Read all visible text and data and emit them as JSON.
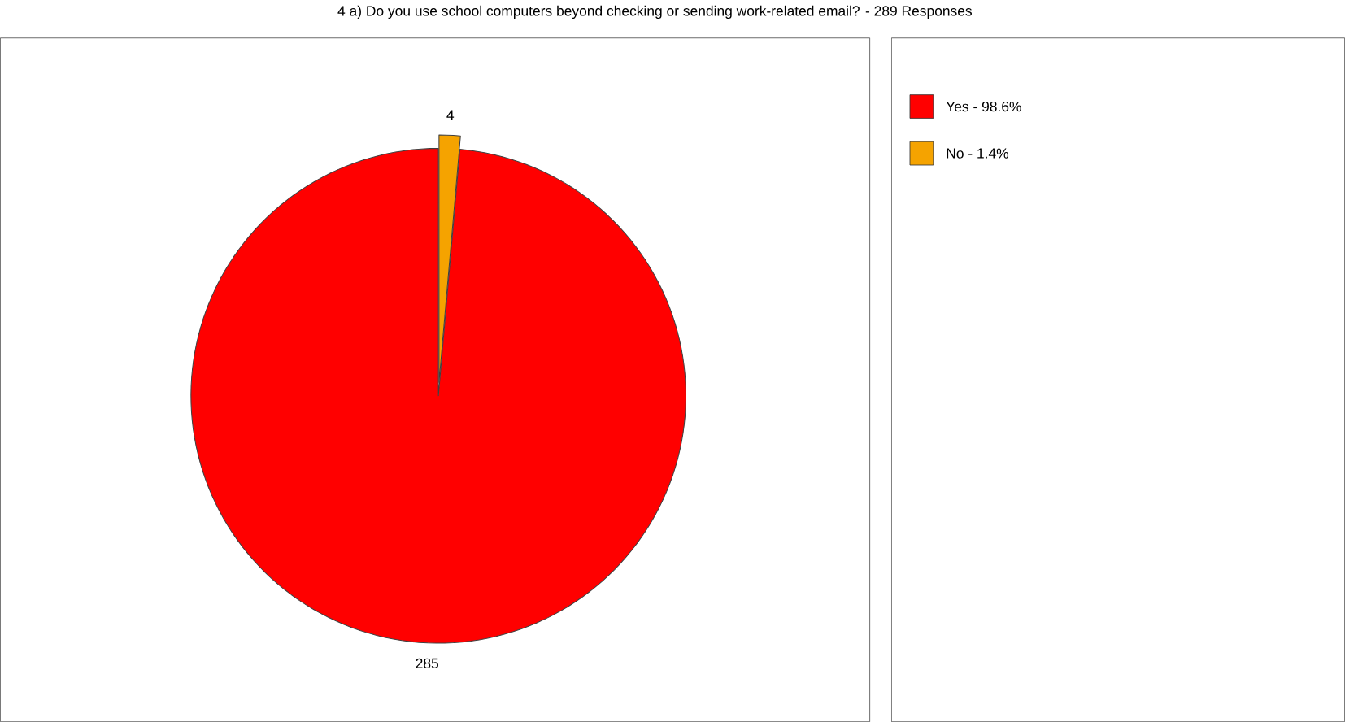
{
  "chart_data": {
    "type": "pie",
    "title": "4 a) Do you use school computers beyond checking or sending work-related email?  - 289 Responses",
    "categories": [
      "Yes - 98.6%",
      "No - 1.4%"
    ],
    "values": [
      285,
      4
    ],
    "colors": [
      "#ff0000",
      "#f5a300"
    ],
    "data_labels": true,
    "legend": "right"
  }
}
